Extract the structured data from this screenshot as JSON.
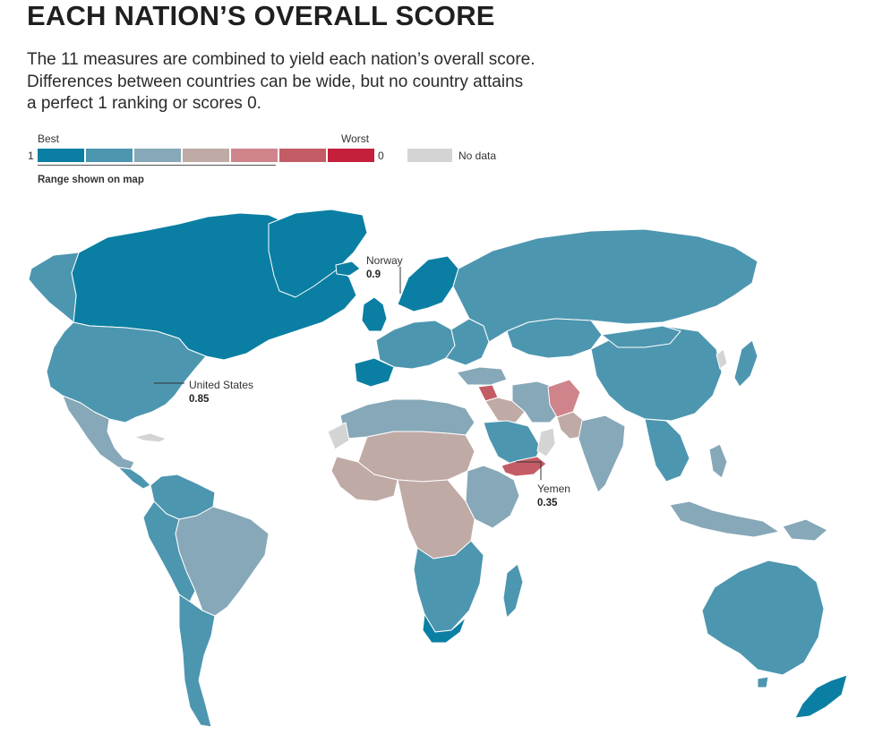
{
  "title": "EACH NATION’S OVERALL SCORE",
  "subtitle_lines": [
    "The 11 measures are combined to yield each nation’s overall score.",
    "Differences between countries can be wide, but no country attains",
    "a perfect 1 ranking or scores 0."
  ],
  "legend": {
    "best_label": "Best",
    "worst_label": "Worst",
    "min_label": "1",
    "max_label": "0",
    "no_data_label": "No data",
    "range_label": "Range shown on map",
    "swatch_colors": [
      "#0b7fa3",
      "#4d96b0",
      "#86a8b8",
      "#bfaaa6",
      "#cf848c",
      "#c45c66",
      "#c41f3b"
    ],
    "no_data_color": "#d4d4d4"
  },
  "callouts": [
    {
      "name": "Norway",
      "value": "0.9"
    },
    {
      "name": "United States",
      "value": "0.85"
    },
    {
      "name": "Yemen",
      "value": "0.35"
    }
  ],
  "map_colors": {
    "tier1": "#0b7fa3",
    "tier2": "#4d96b0",
    "tier3": "#86a8b8",
    "tier4": "#bfaaa6",
    "tier5": "#cf848c",
    "tier6": "#c45c66",
    "no_data": "#d4d4d4",
    "border": "#ffffff"
  }
}
